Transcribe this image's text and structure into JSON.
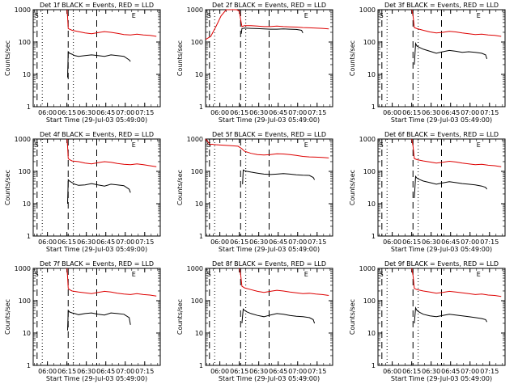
{
  "figure": {
    "ylabel": "Counts/sec",
    "xlabel": "Start Time (29-Jul-03 05:49:00)",
    "x_tick_labels": [
      "06:00",
      "06:15",
      "06:30",
      "06:45",
      "07:00",
      "07:15"
    ],
    "y_tick_labels": [
      "1",
      "10",
      "100",
      "1000"
    ],
    "marker_s": "S",
    "marker_e": "E",
    "colors": {
      "events": "#000000",
      "lld": "#dd0000",
      "axes": "#000000"
    }
  },
  "chart_data": [
    {
      "type": "line",
      "title": "Det 1f BLACK = Events, RED = LLD",
      "xunit": "minutes after 05:49:00",
      "xlim": [
        0,
        98
      ],
      "ylim": [
        1,
        1000
      ],
      "yscale": "log",
      "vlines_dotted": [
        7,
        31
      ],
      "vlines_dashed": [
        3,
        27,
        49
      ],
      "marker_s_x": 1,
      "marker_e_x": 76,
      "series": [
        {
          "name": "Events",
          "color": "#000000",
          "x": [
            26.5,
            27,
            28,
            30,
            32,
            35,
            40,
            45,
            50,
            55,
            60,
            65,
            70,
            74,
            75
          ],
          "y": [
            8,
            50,
            45,
            42,
            38,
            36,
            38,
            40,
            38,
            36,
            40,
            38,
            36,
            28,
            25
          ]
        },
        {
          "name": "LLD",
          "color": "#dd0000",
          "x": [
            26,
            26.5,
            27,
            28,
            30,
            35,
            40,
            45,
            50,
            55,
            60,
            65,
            70,
            75,
            80,
            85,
            90,
            95
          ],
          "y": [
            1000,
            600,
            260,
            250,
            230,
            210,
            190,
            180,
            195,
            210,
            200,
            185,
            170,
            165,
            175,
            165,
            160,
            150
          ]
        }
      ]
    },
    {
      "type": "line",
      "title": "Det 2f BLACK = Events, RED = LLD",
      "xunit": "minutes after 05:49:00",
      "xlim": [
        0,
        98
      ],
      "ylim": [
        1,
        1000
      ],
      "yscale": "log",
      "vlines_dotted": [
        7,
        31
      ],
      "vlines_dashed": [
        3,
        27,
        49
      ],
      "marker_s_x": 1,
      "marker_e_x": 76,
      "series": [
        {
          "name": "Events",
          "color": "#000000",
          "x": [
            27.5,
            28,
            30,
            35,
            40,
            45,
            50,
            55,
            60,
            65,
            70,
            74,
            75
          ],
          "y": [
            180,
            260,
            270,
            265,
            260,
            255,
            250,
            250,
            255,
            250,
            245,
            230,
            190
          ]
        },
        {
          "name": "LLD",
          "color": "#dd0000",
          "x": [
            0,
            4,
            8,
            12,
            16,
            20,
            24,
            26,
            27,
            28,
            30,
            35,
            40,
            45,
            50,
            55,
            60,
            65,
            70,
            75,
            80,
            85,
            90,
            95
          ],
          "y": [
            120,
            150,
            300,
            650,
            1000,
            1000,
            1000,
            900,
            500,
            300,
            320,
            320,
            310,
            300,
            300,
            310,
            300,
            295,
            290,
            280,
            275,
            270,
            265,
            255
          ]
        }
      ]
    },
    {
      "type": "line",
      "title": "Det 3f BLACK = Events, RED = LLD",
      "xunit": "minutes after 05:49:00",
      "xlim": [
        0,
        98
      ],
      "ylim": [
        1,
        1000
      ],
      "yscale": "log",
      "vlines_dotted": [
        7,
        31
      ],
      "vlines_dashed": [
        3,
        27,
        49
      ],
      "marker_s_x": 1,
      "marker_e_x": 76,
      "series": [
        {
          "name": "Events",
          "color": "#000000",
          "x": [
            28,
            29,
            30,
            32,
            35,
            40,
            45,
            50,
            55,
            60,
            65,
            70,
            75,
            80,
            83,
            84
          ],
          "y": [
            20,
            90,
            75,
            68,
            60,
            52,
            45,
            50,
            55,
            52,
            48,
            50,
            48,
            45,
            40,
            30
          ]
        },
        {
          "name": "LLD",
          "color": "#dd0000",
          "x": [
            26,
            27,
            28,
            30,
            35,
            40,
            45,
            50,
            55,
            60,
            65,
            70,
            75,
            80,
            85,
            90,
            95
          ],
          "y": [
            1000,
            650,
            280,
            260,
            230,
            205,
            190,
            200,
            215,
            205,
            190,
            180,
            170,
            175,
            165,
            160,
            150
          ]
        }
      ]
    },
    {
      "type": "line",
      "title": "Det 4f BLACK = Events, RED = LLD",
      "xunit": "minutes after 05:49:00",
      "xlim": [
        0,
        98
      ],
      "ylim": [
        1,
        1000
      ],
      "yscale": "log",
      "vlines_dotted": [
        7,
        31
      ],
      "vlines_dashed": [
        3,
        27,
        49
      ],
      "marker_s_x": 1,
      "marker_e_x": 76,
      "series": [
        {
          "name": "Events",
          "color": "#000000",
          "x": [
            26.5,
            27,
            28,
            30,
            32,
            35,
            40,
            45,
            50,
            55,
            60,
            65,
            70,
            74,
            75
          ],
          "y": [
            10,
            55,
            50,
            45,
            40,
            37,
            38,
            42,
            38,
            35,
            40,
            38,
            36,
            28,
            22
          ]
        },
        {
          "name": "LLD",
          "color": "#dd0000",
          "x": [
            26,
            26.5,
            27,
            28,
            30,
            35,
            40,
            45,
            50,
            55,
            60,
            65,
            70,
            75,
            80,
            85,
            90,
            95
          ],
          "y": [
            1000,
            600,
            250,
            230,
            210,
            200,
            180,
            170,
            185,
            200,
            190,
            175,
            165,
            160,
            170,
            160,
            150,
            140
          ]
        }
      ]
    },
    {
      "type": "line",
      "title": "Det 5f BLACK = Events, RED = LLD",
      "xunit": "minutes after 05:49:00",
      "xlim": [
        0,
        98
      ],
      "ylim": [
        1,
        1000
      ],
      "yscale": "log",
      "vlines_dotted": [
        7,
        31
      ],
      "vlines_dashed": [
        3,
        27,
        49
      ],
      "marker_s_x": 1,
      "marker_e_x": 76,
      "series": [
        {
          "name": "Events",
          "color": "#000000",
          "x": [
            28.5,
            29,
            30,
            32,
            35,
            40,
            45,
            50,
            55,
            60,
            65,
            70,
            75,
            80,
            83,
            84
          ],
          "y": [
            40,
            110,
            105,
            100,
            95,
            88,
            82,
            80,
            82,
            85,
            82,
            78,
            76,
            75,
            65,
            55
          ]
        },
        {
          "name": "LLD",
          "color": "#dd0000",
          "x": [
            0,
            1,
            2,
            3,
            4,
            5,
            6,
            8,
            10,
            15,
            20,
            25,
            28,
            30,
            35,
            40,
            45,
            50,
            55,
            60,
            65,
            70,
            75,
            80,
            85,
            90,
            95
          ],
          "y": [
            1000,
            900,
            800,
            700,
            680,
            690,
            680,
            670,
            660,
            640,
            620,
            600,
            500,
            420,
            360,
            330,
            320,
            330,
            350,
            345,
            330,
            310,
            290,
            280,
            275,
            270,
            260
          ]
        }
      ]
    },
    {
      "type": "line",
      "title": "Det 6f BLACK = Events, RED = LLD",
      "xunit": "minutes after 05:49:00",
      "xlim": [
        0,
        98
      ],
      "ylim": [
        1,
        1000
      ],
      "yscale": "log",
      "vlines_dotted": [
        7,
        31
      ],
      "vlines_dashed": [
        3,
        27,
        49
      ],
      "marker_s_x": 1,
      "marker_e_x": 76,
      "series": [
        {
          "name": "Events",
          "color": "#000000",
          "x": [
            28,
            29,
            30,
            32,
            35,
            40,
            45,
            50,
            55,
            60,
            65,
            70,
            75,
            80,
            83,
            84
          ],
          "y": [
            15,
            70,
            62,
            56,
            50,
            45,
            40,
            44,
            48,
            45,
            42,
            40,
            38,
            35,
            32,
            28
          ]
        },
        {
          "name": "LLD",
          "color": "#dd0000",
          "x": [
            26,
            27,
            28,
            30,
            35,
            40,
            45,
            50,
            55,
            60,
            65,
            70,
            75,
            80,
            85,
            90,
            95
          ],
          "y": [
            1000,
            600,
            250,
            230,
            210,
            195,
            180,
            190,
            205,
            195,
            180,
            170,
            160,
            165,
            155,
            150,
            140
          ]
        }
      ]
    },
    {
      "type": "line",
      "title": "Det 7f BLACK = Events, RED = LLD",
      "xunit": "minutes after 05:49:00",
      "xlim": [
        0,
        98
      ],
      "ylim": [
        1,
        1000
      ],
      "yscale": "log",
      "vlines_dotted": [
        7,
        31
      ],
      "vlines_dashed": [
        3,
        27,
        49
      ],
      "marker_s_x": 1,
      "marker_e_x": 76,
      "series": [
        {
          "name": "Events",
          "color": "#000000",
          "x": [
            26.5,
            27,
            28,
            30,
            32,
            35,
            40,
            45,
            50,
            55,
            60,
            65,
            70,
            74,
            75
          ],
          "y": [
            12,
            50,
            45,
            42,
            40,
            37,
            40,
            42,
            38,
            36,
            42,
            40,
            38,
            30,
            18
          ]
        },
        {
          "name": "LLD",
          "color": "#dd0000",
          "x": [
            26,
            26.5,
            27,
            28,
            30,
            35,
            40,
            45,
            50,
            55,
            60,
            65,
            70,
            75,
            80,
            85,
            90,
            95
          ],
          "y": [
            1000,
            550,
            240,
            220,
            200,
            185,
            175,
            165,
            180,
            195,
            185,
            170,
            160,
            155,
            165,
            155,
            150,
            140
          ]
        }
      ]
    },
    {
      "type": "line",
      "title": "Det 8f BLACK = Events, RED = LLD",
      "xunit": "minutes after 05:49:00",
      "xlim": [
        0,
        98
      ],
      "ylim": [
        1,
        1000
      ],
      "yscale": "log",
      "vlines_dotted": [
        7,
        31
      ],
      "vlines_dashed": [
        3,
        27,
        49
      ],
      "marker_s_x": 1,
      "marker_e_x": 76,
      "series": [
        {
          "name": "Events",
          "color": "#000000",
          "x": [
            28,
            29,
            30,
            32,
            35,
            40,
            45,
            50,
            55,
            60,
            65,
            70,
            75,
            80,
            83,
            84
          ],
          "y": [
            20,
            55,
            50,
            45,
            40,
            35,
            32,
            36,
            40,
            38,
            35,
            33,
            32,
            30,
            26,
            20
          ]
        },
        {
          "name": "LLD",
          "color": "#dd0000",
          "x": [
            26,
            27,
            28,
            30,
            35,
            40,
            45,
            50,
            55,
            60,
            65,
            70,
            75,
            80,
            85,
            90,
            95
          ],
          "y": [
            1000,
            650,
            280,
            250,
            220,
            195,
            180,
            195,
            210,
            200,
            185,
            175,
            165,
            170,
            160,
            155,
            145
          ]
        }
      ]
    },
    {
      "type": "line",
      "title": "Det 9f BLACK = Events, RED = LLD",
      "xunit": "minutes after 05:49:00",
      "xlim": [
        0,
        98
      ],
      "ylim": [
        1,
        1000
      ],
      "yscale": "log",
      "vlines_dotted": [
        7,
        31
      ],
      "vlines_dashed": [
        3,
        27,
        49
      ],
      "marker_s_x": 1,
      "marker_e_x": 76,
      "series": [
        {
          "name": "Events",
          "color": "#000000",
          "x": [
            28,
            29,
            30,
            32,
            35,
            40,
            45,
            50,
            55,
            60,
            65,
            70,
            75,
            80,
            83,
            84
          ],
          "y": [
            20,
            60,
            50,
            44,
            38,
            34,
            32,
            35,
            38,
            36,
            34,
            32,
            30,
            28,
            26,
            22
          ]
        },
        {
          "name": "LLD",
          "color": "#dd0000",
          "x": [
            26,
            27,
            28,
            30,
            35,
            40,
            45,
            50,
            55,
            60,
            65,
            70,
            75,
            80,
            85,
            90,
            95
          ],
          "y": [
            1000,
            600,
            240,
            220,
            200,
            185,
            170,
            180,
            195,
            185,
            175,
            165,
            155,
            160,
            150,
            145,
            135
          ]
        }
      ]
    }
  ]
}
